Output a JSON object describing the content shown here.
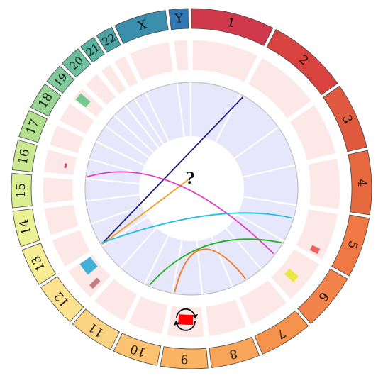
{
  "chromosomes": [
    {
      "label": "1",
      "color": "#d0384c",
      "size": 249
    },
    {
      "label": "2",
      "color": "#d9433f",
      "size": 243
    },
    {
      "label": "3",
      "color": "#e05a3f",
      "size": 198
    },
    {
      "label": "4",
      "color": "#e7693f",
      "size": 191
    },
    {
      "label": "5",
      "color": "#ef7844",
      "size": 181
    },
    {
      "label": "6",
      "color": "#f2834a",
      "size": 171
    },
    {
      "label": "7",
      "color": "#f5934d",
      "size": 159
    },
    {
      "label": "8",
      "color": "#f8a55a",
      "size": 146
    },
    {
      "label": "9",
      "color": "#fab463",
      "size": 141
    },
    {
      "label": "10",
      "color": "#fbc371",
      "size": 135
    },
    {
      "label": "11",
      "color": "#fcd382",
      "size": 135
    },
    {
      "label": "12",
      "color": "#fce28f",
      "size": 133
    },
    {
      "label": "13",
      "color": "#f5ec93",
      "size": 114
    },
    {
      "label": "14",
      "color": "#ecf194",
      "size": 107
    },
    {
      "label": "15",
      "color": "#dcee92",
      "size": 102
    },
    {
      "label": "16",
      "color": "#c9e78f",
      "size": 90
    },
    {
      "label": "17",
      "color": "#b2df8b",
      "size": 83
    },
    {
      "label": "18",
      "color": "#99d595",
      "size": 80
    },
    {
      "label": "19",
      "color": "#7fc99a",
      "size": 59
    },
    {
      "label": "20",
      "color": "#6bbf9d",
      "size": 64
    },
    {
      "label": "21",
      "color": "#58b3a0",
      "size": 47
    },
    {
      "label": "22",
      "color": "#4ba4a3",
      "size": 51
    },
    {
      "label": "X",
      "color": "#3b8fad",
      "size": 156
    },
    {
      "label": "Y",
      "color": "#3278b4",
      "size": 57
    }
  ],
  "question_mark": "?",
  "colors": {
    "track_fill": "#fde8e8",
    "inner_fill": "#e7e7fb",
    "inner_border": "#bfbfbf",
    "cnv_red": "#ff0000",
    "arrow": "#111111"
  },
  "features": [
    {
      "id": "chr19-green",
      "color": "#74c98e",
      "shape": "rect"
    },
    {
      "id": "chr16-magenta",
      "color": "#e0306a",
      "shape": "tick"
    },
    {
      "id": "chr12-cyan",
      "color": "#40b0d8",
      "shape": "rect"
    },
    {
      "id": "chr12-mauve",
      "color": "#c08080",
      "shape": "tick"
    },
    {
      "id": "chr9-red",
      "color": "#ff0000",
      "shape": "rect"
    },
    {
      "id": "chr6-yellow",
      "color": "#e8e840",
      "shape": "rect"
    },
    {
      "id": "chr5-salmon",
      "color": "#f06060",
      "shape": "tick"
    }
  ],
  "links": [
    {
      "id": "navy",
      "color": "#1a1a7a"
    },
    {
      "id": "orange-line",
      "color": "#f0a020"
    },
    {
      "id": "magenta",
      "color": "#e040c0"
    },
    {
      "id": "cyan",
      "color": "#20c0e0"
    },
    {
      "id": "green",
      "color": "#20b020"
    },
    {
      "id": "orange-arc",
      "color": "#f07820"
    }
  ]
}
